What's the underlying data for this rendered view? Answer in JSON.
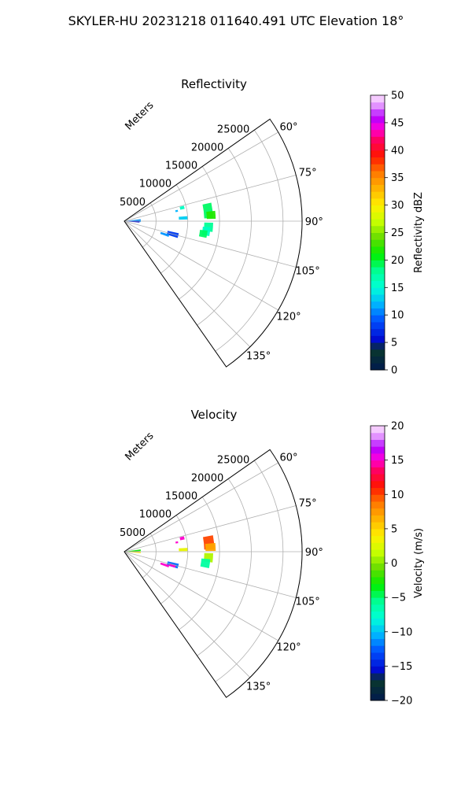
{
  "figure": {
    "suptitle": "SKYLER-HU  20231218  011640.491 UTC Elevation 18°"
  },
  "chart_data": [
    {
      "type": "heatmap",
      "projection": "polar-sector",
      "title": "Reflectivity",
      "radial_label": "Meters",
      "radial_ticks": [
        "5000",
        "10000",
        "15000",
        "20000",
        "25000"
      ],
      "radial_values": [
        5000,
        10000,
        15000,
        20000,
        25000
      ],
      "rlim": [
        0,
        28000
      ],
      "azimuth_ticks": [
        "60°",
        "75°",
        "90°",
        "105°",
        "120°",
        "135°"
      ],
      "azimuth_values": [
        60,
        75,
        90,
        105,
        120,
        135
      ],
      "azimuth_range": [
        55,
        145
      ],
      "grid": true,
      "colorbar": {
        "label": "Reflectivity dBZ",
        "range": [
          0,
          50
        ],
        "ticks": [
          "0",
          "5",
          "10",
          "15",
          "20",
          "25",
          "30",
          "35",
          "40",
          "45",
          "50"
        ],
        "tick_values": [
          0,
          5,
          10,
          15,
          20,
          25,
          30,
          35,
          40,
          45,
          50
        ]
      },
      "echoes": [
        {
          "az": 88,
          "r_range": [
            0,
            2600
          ],
          "az_halfwidth": 5,
          "value": 11
        },
        {
          "az": 92,
          "r_range": [
            500,
            2400
          ],
          "az_halfwidth": 3,
          "value": 5
        },
        {
          "az": 77,
          "r_range": [
            9000,
            9700
          ],
          "az_halfwidth": 1.5,
          "value": 16
        },
        {
          "az": 79,
          "r_range": [
            8200,
            8600
          ],
          "az_halfwidth": 1,
          "value": 12
        },
        {
          "az": 83,
          "r_range": [
            12600,
            14000
          ],
          "az_halfwidth": 5,
          "value": 19
        },
        {
          "az": 86,
          "r_range": [
            13000,
            14400
          ],
          "az_halfwidth": 2.5,
          "value": 22
        },
        {
          "az": 87,
          "r_range": [
            8600,
            10000
          ],
          "az_halfwidth": 1.5,
          "value": 13
        },
        {
          "az": 94,
          "r_range": [
            12600,
            14000
          ],
          "az_halfwidth": 3,
          "value": 18
        },
        {
          "az": 97,
          "r_range": [
            12400,
            13600
          ],
          "az_halfwidth": 3,
          "value": 16
        },
        {
          "az": 99,
          "r_range": [
            12000,
            13200
          ],
          "az_halfwidth": 2.5,
          "value": 19
        },
        {
          "az": 105,
          "r_range": [
            7000,
            8800
          ],
          "az_halfwidth": 2.5,
          "value": 8
        },
        {
          "az": 108,
          "r_range": [
            6000,
            7400
          ],
          "az_halfwidth": 1.5,
          "value": 11
        }
      ]
    },
    {
      "type": "heatmap",
      "projection": "polar-sector",
      "title": "Velocity",
      "radial_label": "Meters",
      "radial_ticks": [
        "5000",
        "10000",
        "15000",
        "20000",
        "25000"
      ],
      "radial_values": [
        5000,
        10000,
        15000,
        20000,
        25000
      ],
      "rlim": [
        0,
        28000
      ],
      "azimuth_ticks": [
        "60°",
        "75°",
        "90°",
        "105°",
        "120°",
        "135°"
      ],
      "azimuth_values": [
        60,
        75,
        90,
        105,
        120,
        135
      ],
      "azimuth_range": [
        55,
        145
      ],
      "grid": true,
      "colorbar": {
        "label": "Velocity (m/s)",
        "range": [
          -20,
          20
        ],
        "ticks": [
          "−20",
          "−15",
          "−10",
          "−5",
          "0",
          "5",
          "10",
          "15",
          "20"
        ],
        "tick_values": [
          -20,
          -15,
          -10,
          -5,
          0,
          5,
          10,
          15,
          20
        ]
      },
      "echoes": [
        {
          "az": 85,
          "r_range": [
            0,
            2600
          ],
          "az_halfwidth": 3,
          "value": -3
        },
        {
          "az": 90,
          "r_range": [
            0,
            2400
          ],
          "az_halfwidth": 2,
          "value": 16
        },
        {
          "az": 93,
          "r_range": [
            0,
            2600
          ],
          "az_halfwidth": 2,
          "value": 4
        },
        {
          "az": 77,
          "r_range": [
            9000,
            9700
          ],
          "az_halfwidth": 1.5,
          "value": 15
        },
        {
          "az": 80,
          "r_range": [
            8200,
            8600
          ],
          "az_halfwidth": 1,
          "value": 15
        },
        {
          "az": 84,
          "r_range": [
            12600,
            14200
          ],
          "az_halfwidth": 4.5,
          "value": 10
        },
        {
          "az": 87,
          "r_range": [
            12800,
            14400
          ],
          "az_halfwidth": 2.5,
          "value": 7
        },
        {
          "az": 88,
          "r_range": [
            8600,
            10000
          ],
          "az_halfwidth": 1.5,
          "value": 3
        },
        {
          "az": 94,
          "r_range": [
            12600,
            14000
          ],
          "az_halfwidth": 3,
          "value": 1
        },
        {
          "az": 98,
          "r_range": [
            12200,
            13600
          ],
          "az_halfwidth": 3,
          "value": -6
        },
        {
          "az": 105,
          "r_range": [
            7000,
            8800
          ],
          "az_halfwidth": 2.5,
          "value": -12
        },
        {
          "az": 106,
          "r_range": [
            7400,
            8400
          ],
          "az_halfwidth": 1.5,
          "value": 15
        },
        {
          "az": 108,
          "r_range": [
            6000,
            7400
          ],
          "az_halfwidth": 1.5,
          "value": 15
        }
      ]
    }
  ]
}
